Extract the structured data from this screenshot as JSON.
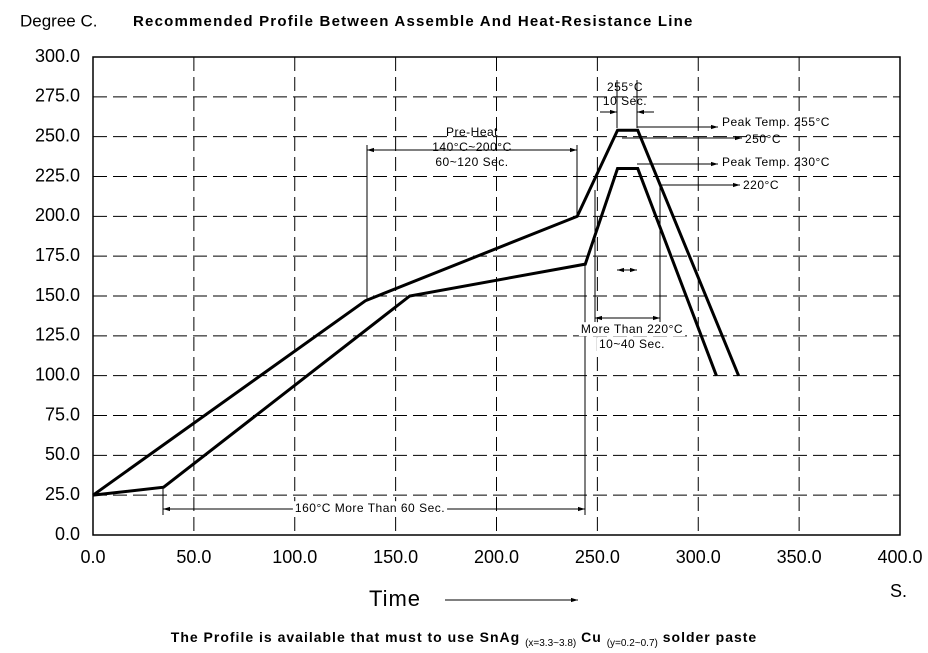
{
  "chart_data": {
    "type": "line",
    "y_label": "Degree C.",
    "title": "Recommended Profile Between Assemble And Heat-Resistance Line",
    "x_label": "Time",
    "x_unit": "S.",
    "footnote": [
      "The Profile is available that must to use SnAg",
      "(x=3.3~3.8)",
      "Cu",
      "(y=0.2~0.7)",
      "solder paste"
    ],
    "annotations": [
      "255°C",
      "10 Sec.",
      "Peak Temp. 255°C",
      "250°C",
      "Peak Temp. 230°C",
      "220°C",
      "Pre-Heat",
      "140°C~200°C",
      "60~120 Sec.",
      "More Than 220°C",
      "10~40 Sec.",
      "160°C More Than 60 Sec."
    ],
    "xlim": [
      0,
      400
    ],
    "ylim": [
      0,
      300
    ],
    "xticks": [
      {
        "value": 0,
        "label": "0.0"
      },
      {
        "value": 50,
        "label": "50.0"
      },
      {
        "value": 100,
        "label": "100.0"
      },
      {
        "value": 150,
        "label": "150.0"
      },
      {
        "value": 200,
        "label": "200.0"
      },
      {
        "value": 250,
        "label": "250.0"
      },
      {
        "value": 300,
        "label": "300.0"
      },
      {
        "value": 350,
        "label": "350.0"
      },
      {
        "value": 400,
        "label": "400.0"
      }
    ],
    "yticks": [
      {
        "value": 0,
        "label": "0.0"
      },
      {
        "value": 25,
        "label": "25.0"
      },
      {
        "value": 50,
        "label": "50.0"
      },
      {
        "value": 75,
        "label": "75.0"
      },
      {
        "value": 100,
        "label": "100.0"
      },
      {
        "value": 125,
        "label": "125.0"
      },
      {
        "value": 150,
        "label": "150.0"
      },
      {
        "value": 175,
        "label": "175.0"
      },
      {
        "value": 200,
        "label": "200.0"
      },
      {
        "value": 225,
        "label": "225.0"
      },
      {
        "value": 250,
        "label": "250.0"
      },
      {
        "value": 275,
        "label": "275.0"
      },
      {
        "value": 300,
        "label": "300.0"
      }
    ],
    "grid": true,
    "series": [
      {
        "color": "#000000",
        "x": [
          0,
          135,
          240,
          260,
          270,
          320
        ],
        "values": [
          25,
          147,
          200,
          254,
          254,
          100
        ]
      },
      {
        "color": "#000000",
        "x": [
          0,
          35,
          157,
          244,
          260,
          270,
          309
        ],
        "values": [
          25,
          30,
          150,
          170,
          230,
          230,
          100
        ]
      }
    ]
  }
}
